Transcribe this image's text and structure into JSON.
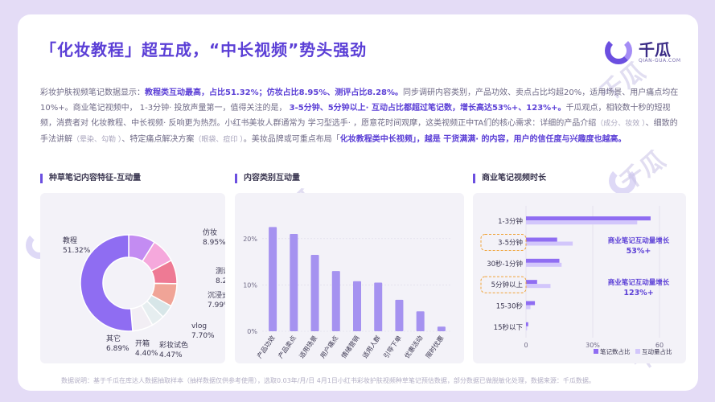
{
  "page": {
    "title": "「化妆教程」超五成，“中长视频”势头强劲",
    "footnote": "数据说明：基于千瓜在库达人数据抽取样本（抽样数据仅供参考使用），选取0.03年/月/日 4月1日小红书彩妆护肤视频种草笔记预估数据，部分数据已做脱敏化处理，数据来源：千瓜数据。"
  },
  "logo": {
    "name": "千瓜",
    "sub": "QIAN-GUA.COM"
  },
  "watermark": {
    "text": "千瓜"
  },
  "paragraph": {
    "s1": "彩妆护肤视频笔记数据显示：",
    "s2": "教程类互动最高，占比51.32%；仿妆占比8.95%、测评占比8.28%。",
    "s3": "同步调研内容类别，产品功效、卖点占比均超20%，适用场景、用户痛点均在10%+。商业笔记视频中，  1-3分钟· 投放声量第一，值得关注的是，  ",
    "s4": "3-5分钟、5分钟以上· 互动占比都超过笔记数，增长高达53%+、123%+。",
    "s5": "千瓜观点，相较数十秒的短视频，消费者对  化妆教程、中长视频· 反响更为热烈。小红书美妆人群通常为  学习型选手· ，愿意花时间观摩，这类视频正中TA们的核心需求：详细的产品介绍",
    "s6": "（成分、妆效  ）",
    "s7": "、细致的手法讲解",
    "s8": "（晕染、勾勒  ）",
    "s9": "、特定痛点解决方案",
    "s10": "（眼袋、痘印  ）",
    "s11": "。美妆品牌或可重点布局「",
    "s12": "化妆教程类中长视频」，越是  干货满满· 的内容，用户的信任度与兴趣度也越高。"
  },
  "panels": {
    "left_title": "种草笔记内容特征-互动量",
    "mid_title": "内容类别互动量",
    "right_title": "商业笔记视频时长"
  },
  "colors": {
    "accent": "#5b3fd6",
    "donut": [
      "#8f6df2",
      "#c38cf2",
      "#f5a8dc",
      "#ee7a94",
      "#f0a497",
      "#d7e6e8",
      "#f2eef4"
    ],
    "bar": "#a592f0",
    "bar_light": "#c7bbf5",
    "hbar_dark": "#8f6df2",
    "hbar_light": "#d2c6fb",
    "callout": "#5b3fd6",
    "dash": "#f0a43a"
  },
  "chart_data": [
    {
      "type": "pie",
      "title": "种草笔记内容特征-互动量",
      "labels": [
        "教程",
        "仿妆",
        "测评",
        "沉浸式",
        "vlog",
        "彩妆试色",
        "开箱",
        "其它"
      ],
      "values": [
        51.32,
        8.95,
        8.28,
        7.99,
        7.7,
        4.47,
        4.4,
        6.89
      ],
      "value_labels": [
        "51.32%",
        "8.95%",
        "8.28%",
        "7.99%",
        "7.70%",
        "4.47%",
        "4.40%",
        "6.89%"
      ]
    },
    {
      "type": "bar",
      "title": "内容类别互动量",
      "categories": [
        "产品功效",
        "产品卖点",
        "适用场景",
        "用户痛点",
        "情绪营销",
        "适用人群",
        "引导下单",
        "优惠活动",
        "限时优惠"
      ],
      "values": [
        22.5,
        21.0,
        16.5,
        13.0,
        10.8,
        10.5,
        6.8,
        4.3,
        1.0
      ],
      "ylim": [
        0,
        25
      ],
      "yticks": [
        "0%",
        "10%",
        "20%"
      ],
      "grid": true
    },
    {
      "type": "bar",
      "orientation": "horizontal",
      "title": "商业笔记视频时长",
      "categories": [
        "1-3分钟",
        "3-5分钟",
        "30秒-1分钟",
        "5分钟以上",
        "15-30秒",
        "15秒以下"
      ],
      "series": [
        {
          "name": "笔记数占比",
          "values": [
            56,
            14,
            15,
            5,
            4,
            1
          ]
        },
        {
          "name": "互动量占比",
          "values": [
            50,
            21,
            16,
            11,
            2,
            0.5
          ]
        }
      ],
      "xlim": [
        0,
        60
      ],
      "xticks": [
        "0",
        "30%",
        "60"
      ],
      "legend": "bottom-right",
      "callouts": [
        {
          "line1": "商业笔记互动量增长",
          "line2": "53%+"
        },
        {
          "line1": "商业笔记互动量增长",
          "line2": "123%+"
        }
      ]
    }
  ]
}
